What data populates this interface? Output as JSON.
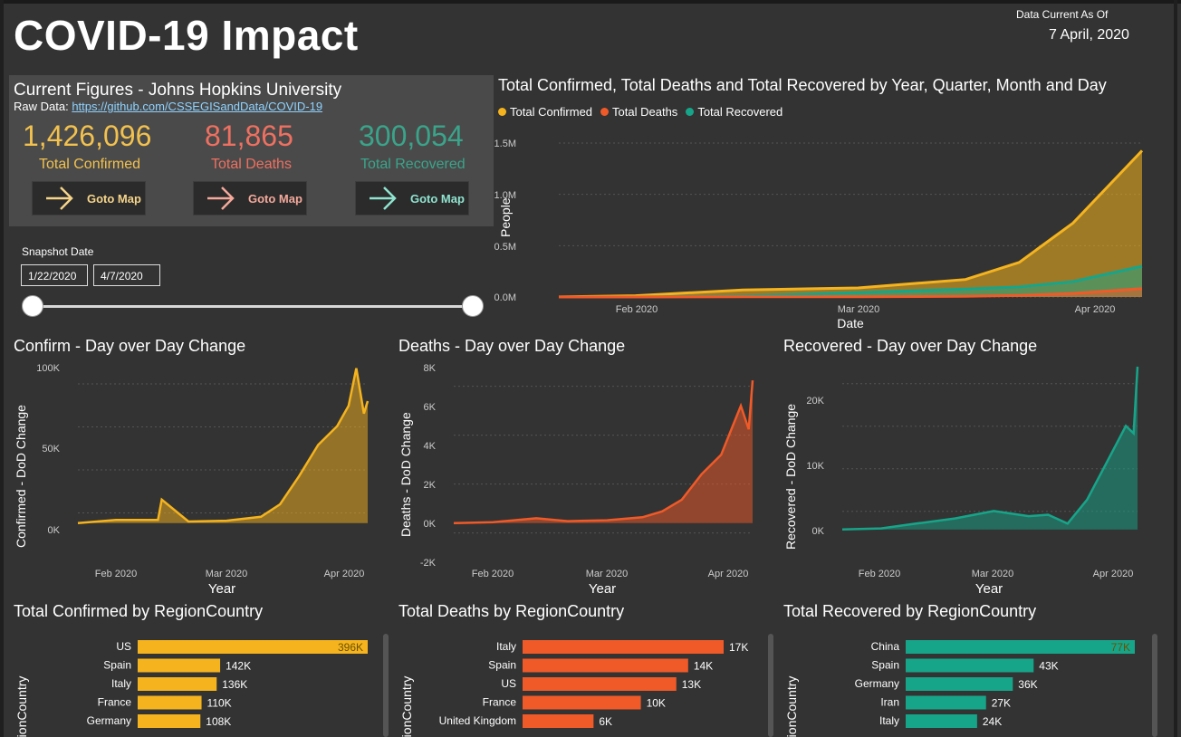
{
  "header": {
    "title": "COVID-19 Impact",
    "as_of_label": "Data Current As Of",
    "as_of_date": "7 April, 2020"
  },
  "figures": {
    "title": "Current Figures - Johns Hopkins University",
    "raw_label": "Raw Data:",
    "raw_link": "https://github.com/CSSEGISandData/COVID-19",
    "kpis": [
      {
        "value": "1,426,096",
        "label": "Total Confirmed",
        "color": "#f2c14e"
      },
      {
        "value": "81,865",
        "label": "Total Deaths",
        "color": "#ee7060"
      },
      {
        "value": "300,054",
        "label": "Total Recovered",
        "color": "#3aa48a"
      }
    ],
    "map_button_label": "Goto Map",
    "arrow_icon": "arrow-right-icon"
  },
  "snapshot": {
    "label": "Snapshot Date",
    "start": "1/22/2020",
    "end": "4/7/2020"
  },
  "colors": {
    "confirmed": "#f5b41e",
    "deaths": "#f05a28",
    "recovered": "#17a58a",
    "bg": "#333333"
  },
  "main_chart": {
    "title": "Total Confirmed, Total Deaths and Total Recovered by Year, Quarter, Month and Day",
    "legend": [
      "Total Confirmed",
      "Total Deaths",
      "Total Recovered"
    ],
    "xlabel": "Date",
    "ylabel": "People",
    "yticks": [
      "1.5M",
      "1.0M",
      "0.5M",
      "0.0M"
    ],
    "xticks": [
      "Feb 2020",
      "Mar 2020",
      "Apr 2020"
    ]
  },
  "dod": [
    {
      "title": "Confirm - Day over Day Change",
      "ylabel": "Confirmed - DoD Change",
      "xlabel": "Year",
      "yticks": [
        "100K",
        "50K",
        "0K"
      ],
      "xticks": [
        "Feb 2020",
        "Mar 2020",
        "Apr 2020"
      ]
    },
    {
      "title": "Deaths - Day over Day Change",
      "ylabel": "Deaths - DoD Change",
      "xlabel": "Year",
      "yticks": [
        "8K",
        "6K",
        "4K",
        "2K",
        "0K",
        "-2K"
      ],
      "xticks": [
        "Feb 2020",
        "Mar 2020",
        "Apr 2020"
      ]
    },
    {
      "title": "Recovered - Day over Day Change",
      "ylabel": "Recovered - DoD Change",
      "xlabel": "Year",
      "yticks": [
        "20K",
        "10K",
        "0K"
      ],
      "xticks": [
        "Feb 2020",
        "Mar 2020",
        "Apr 2020"
      ]
    }
  ],
  "bars": [
    {
      "title": "Total Confirmed by RegionCountry",
      "ylabel": "RegionCountry"
    },
    {
      "title": "Total Deaths by RegionCountry",
      "ylabel": "RegionCountry"
    },
    {
      "title": "Total Recovered by RegionCountry",
      "ylabel": "RegionCountry"
    }
  ],
  "chart_data": [
    {
      "type": "area",
      "title": "Total Confirmed, Total Deaths and Total Recovered by Year, Quarter, Month and Day",
      "xlabel": "Date",
      "ylabel": "People",
      "ylim": [
        0,
        1500000
      ],
      "x": [
        "2020-01-22",
        "2020-02-01",
        "2020-02-15",
        "2020-03-01",
        "2020-03-15",
        "2020-03-22",
        "2020-03-29",
        "2020-04-07"
      ],
      "series": [
        {
          "name": "Total Confirmed",
          "values": [
            555,
            12000,
            69000,
            88000,
            170000,
            337000,
            720000,
            1426096
          ]
        },
        {
          "name": "Total Deaths",
          "values": [
            17,
            260,
            1660,
            3000,
            6500,
            15000,
            34000,
            81865
          ]
        },
        {
          "name": "Total Recovered",
          "values": [
            28,
            280,
            9400,
            43000,
            77000,
            98000,
            150000,
            300054
          ]
        }
      ]
    },
    {
      "type": "line",
      "title": "Confirm - Day over Day Change",
      "xlabel": "Year",
      "ylabel": "Confirmed - DoD Change",
      "ylim": [
        -10000,
        100000
      ],
      "x": [
        "2020-01-22",
        "2020-02-01",
        "2020-02-12",
        "2020-02-13",
        "2020-02-20",
        "2020-03-01",
        "2020-03-10",
        "2020-03-15",
        "2020-03-20",
        "2020-03-25",
        "2020-03-30",
        "2020-04-02",
        "2020-04-04",
        "2020-04-06",
        "2020-04-07"
      ],
      "values": [
        0,
        2000,
        2000,
        15000,
        1000,
        1500,
        4000,
        12000,
        30000,
        50000,
        62000,
        75000,
        99000,
        70000,
        78000
      ]
    },
    {
      "type": "line",
      "title": "Deaths - Day over Day Change",
      "xlabel": "Year",
      "ylabel": "Deaths - DoD Change",
      "ylim": [
        -2000,
        8000
      ],
      "x": [
        "2020-01-22",
        "2020-02-01",
        "2020-02-12",
        "2020-02-20",
        "2020-03-01",
        "2020-03-10",
        "2020-03-15",
        "2020-03-20",
        "2020-03-25",
        "2020-03-30",
        "2020-04-02",
        "2020-04-04",
        "2020-04-06",
        "2020-04-07"
      ],
      "values": [
        0,
        50,
        250,
        100,
        150,
        300,
        600,
        1200,
        2500,
        3500,
        5000,
        6000,
        4800,
        7300
      ]
    },
    {
      "type": "line",
      "title": "Recovered - Day over Day Change",
      "xlabel": "Year",
      "ylabel": "Recovered - DoD Change",
      "ylim": [
        -1000,
        22000
      ],
      "x": [
        "2020-01-22",
        "2020-02-01",
        "2020-02-10",
        "2020-02-20",
        "2020-03-01",
        "2020-03-10",
        "2020-03-15",
        "2020-03-20",
        "2020-03-25",
        "2020-03-30",
        "2020-04-02",
        "2020-04-04",
        "2020-04-06",
        "2020-04-07"
      ],
      "values": [
        0,
        150,
        800,
        1500,
        2500,
        1800,
        2000,
        800,
        4000,
        9000,
        12000,
        14000,
        13000,
        22000
      ]
    },
    {
      "type": "bar",
      "title": "Total Confirmed by RegionCountry",
      "xlabel": "",
      "ylabel": "RegionCountry",
      "categories": [
        "US",
        "Spain",
        "Italy",
        "France",
        "Germany"
      ],
      "values": [
        396000,
        142000,
        136000,
        110000,
        108000
      ],
      "labels": [
        "396K",
        "142K",
        "136K",
        "110K",
        "108K"
      ]
    },
    {
      "type": "bar",
      "title": "Total Deaths by RegionCountry",
      "xlabel": "",
      "ylabel": "RegionCountry",
      "categories": [
        "Italy",
        "Spain",
        "US",
        "France",
        "United Kingdom"
      ],
      "values": [
        17000,
        14000,
        13000,
        10000,
        6000
      ],
      "labels": [
        "17K",
        "14K",
        "13K",
        "10K",
        "6K"
      ]
    },
    {
      "type": "bar",
      "title": "Total Recovered by RegionCountry",
      "xlabel": "",
      "ylabel": "RegionCountry",
      "categories": [
        "China",
        "Spain",
        "Germany",
        "Iran",
        "Italy"
      ],
      "values": [
        77000,
        43000,
        36000,
        27000,
        24000
      ],
      "labels": [
        "77K",
        "43K",
        "36K",
        "27K",
        "24K"
      ]
    }
  ]
}
